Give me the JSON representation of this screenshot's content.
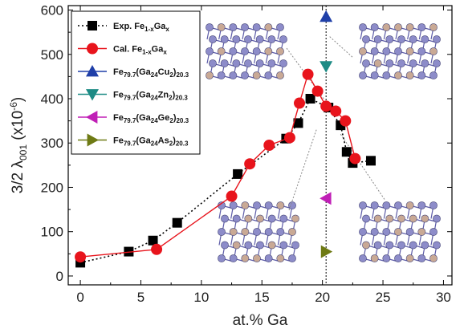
{
  "chart_data": {
    "type": "scatter",
    "xlabel": "at.% Ga",
    "ylabel": "3/2 λ001 (×10⁻⁶)",
    "ylabel_parts": {
      "lead": "3/2 λ",
      "sub": "001",
      "unit_open": " (x10",
      "exp": "-6",
      "unit_close": ")"
    },
    "xlim": [
      -1,
      30.7
    ],
    "ylim": [
      -20,
      610
    ],
    "xticks": [
      0,
      5,
      10,
      15,
      20,
      25,
      30
    ],
    "yticks": [
      0,
      100,
      200,
      300,
      400,
      500,
      600
    ],
    "reference_line_x": 20.3,
    "legend_position": "top-left",
    "series": [
      {
        "name": "Exp. Fe1-xGax",
        "legend_parts": {
          "main": "Exp. Fe",
          "sub1": "1-x",
          "mid": "Ga",
          "sub2": "x",
          "tail": ""
        },
        "color": "#000000",
        "marker": "square",
        "line": "dotted",
        "x": [
          0,
          4,
          6,
          8,
          13,
          17,
          18,
          19,
          20.5,
          21.5,
          22,
          22.5,
          24
        ],
        "y": [
          30,
          55,
          80,
          120,
          230,
          310,
          345,
          400,
          380,
          340,
          280,
          255,
          260
        ]
      },
      {
        "name": "Cal. Fe1-xGax",
        "legend_parts": {
          "main": "Cal.  Fe",
          "sub1": "1-x",
          "mid": "Ga",
          "sub2": "x",
          "tail": ""
        },
        "color": "#e8141c",
        "marker": "circle",
        "line": "solid",
        "x": [
          0,
          6.3,
          12.5,
          14,
          15.6,
          17.3,
          18.1,
          18.8,
          19.6,
          20.3,
          21.1,
          21.9,
          22.7
        ],
        "y": [
          43,
          60,
          180,
          253,
          295,
          312,
          390,
          455,
          417,
          383,
          372,
          350,
          265
        ]
      },
      {
        "name": "Fe79.7(Ga24Cu2)20.3",
        "legend_parts": {
          "main": "Fe",
          "sub1": "79.7",
          "mid": "(Ga",
          "sub2": "24",
          "tail": "Cu",
          "sub3": "2",
          "close": ")",
          "sub4": "20.3"
        },
        "color": "#1f3fa8",
        "marker": "triangle-up",
        "line": "none",
        "x": [
          20.3
        ],
        "y": [
          585
        ]
      },
      {
        "name": "Fe79.7(Ga24Zn2)20.3",
        "legend_parts": {
          "main": "Fe",
          "sub1": "79.7",
          "mid": "(Ga",
          "sub2": "24",
          "tail": "Zn",
          "sub3": "2",
          "close": ")",
          "sub4": "20.3"
        },
        "color": "#1d8b85",
        "marker": "triangle-down",
        "line": "none",
        "x": [
          20.3
        ],
        "y": [
          473
        ]
      },
      {
        "name": "Fe79.7(Ga24Ge2)20.3",
        "legend_parts": {
          "main": "Fe",
          "sub1": "79.7",
          "mid": "(Ga",
          "sub2": "24",
          "tail": "Ge",
          "sub3": "2",
          "close": ")",
          "sub4": "20.3"
        },
        "color": "#c01fb6",
        "marker": "triangle-left",
        "line": "none",
        "x": [
          20.3
        ],
        "y": [
          175
        ]
      },
      {
        "name": "Fe79.7(Ga24As2)20.3",
        "legend_parts": {
          "main": "Fe",
          "sub1": "79.7",
          "mid": "(Ga",
          "sub2": "24",
          "tail": "As",
          "sub3": "2",
          "close": ")",
          "sub4": "20.3"
        },
        "color": "#6e7a14",
        "marker": "triangle-right",
        "line": "none",
        "x": [
          20.3
        ],
        "y": [
          55
        ]
      }
    ]
  },
  "insets": [
    {
      "name": "crystal-structure-cu",
      "atom_color": "#8d8cc9",
      "dopant_color": "#c9a995"
    },
    {
      "name": "crystal-structure-zn",
      "atom_color": "#8d8cc9",
      "dopant_color": "#c9a995"
    },
    {
      "name": "crystal-structure-ge",
      "atom_color": "#8d8cc9",
      "dopant_color": "#c9a995"
    },
    {
      "name": "crystal-structure-as",
      "atom_color": "#8d8cc9",
      "dopant_color": "#c9a995"
    }
  ]
}
